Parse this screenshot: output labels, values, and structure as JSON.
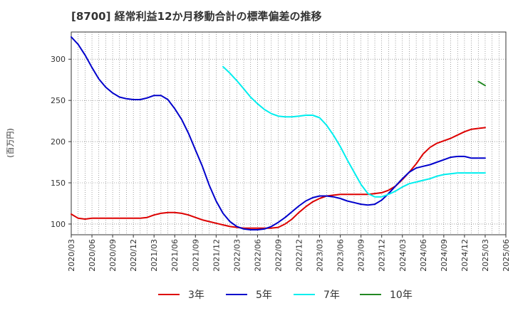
{
  "chart_data": {
    "type": "line",
    "title": "[8700]  経常利益12か月移動合計の標準偏差の推移",
    "ylabel": "(百万円)",
    "xlabel": "",
    "ylim": [
      87,
      333
    ],
    "yticks": [
      100,
      150,
      200,
      250,
      300
    ],
    "xticks": [
      "2020/03",
      "2020/06",
      "2020/09",
      "2020/12",
      "2021/03",
      "2021/06",
      "2021/09",
      "2021/12",
      "2022/03",
      "2022/06",
      "2022/09",
      "2022/12",
      "2023/03",
      "2023/06",
      "2023/09",
      "2023/12",
      "2024/03",
      "2024/06",
      "2024/09",
      "2024/12",
      "2025/03",
      "2025/06"
    ],
    "grid": true,
    "legend_position": "bottom",
    "series": [
      {
        "name": "3年",
        "color": "#dd0000",
        "x": [
          "2020/03",
          "2020/04",
          "2020/05",
          "2020/06",
          "2020/07",
          "2020/08",
          "2020/09",
          "2020/10",
          "2020/11",
          "2020/12",
          "2021/01",
          "2021/02",
          "2021/03",
          "2021/04",
          "2021/05",
          "2021/06",
          "2021/07",
          "2021/08",
          "2021/09",
          "2021/10",
          "2021/11",
          "2021/12",
          "2022/01",
          "2022/02",
          "2022/03",
          "2022/04",
          "2022/05",
          "2022/06",
          "2022/07",
          "2022/08",
          "2022/09",
          "2022/10",
          "2022/11",
          "2022/12",
          "2023/01",
          "2023/02",
          "2023/03",
          "2023/04",
          "2023/05",
          "2023/06",
          "2023/07",
          "2023/08",
          "2023/09",
          "2023/10",
          "2023/11",
          "2023/12",
          "2024/01",
          "2024/02",
          "2024/03",
          "2024/04",
          "2024/05",
          "2024/06",
          "2024/07",
          "2024/08",
          "2024/09",
          "2024/10",
          "2024/11",
          "2024/12",
          "2025/01",
          "2025/02",
          "2025/03"
        ],
        "values": [
          112,
          107,
          106,
          107,
          107,
          107,
          107,
          107,
          107,
          107,
          107,
          108,
          111,
          113,
          114,
          114,
          113,
          111,
          108,
          105,
          103,
          101,
          99,
          97,
          96,
          95,
          95,
          95,
          95,
          95,
          96,
          100,
          106,
          114,
          121,
          127,
          131,
          134,
          135,
          136,
          136,
          136,
          136,
          136,
          137,
          138,
          141,
          146,
          154,
          163,
          173,
          185,
          193,
          198,
          201,
          204,
          208,
          212,
          215,
          216,
          217
        ]
      },
      {
        "name": "5年",
        "color": "#0000cc",
        "x": [
          "2020/03",
          "2020/04",
          "2020/05",
          "2020/06",
          "2020/07",
          "2020/08",
          "2020/09",
          "2020/10",
          "2020/11",
          "2020/12",
          "2021/01",
          "2021/02",
          "2021/03",
          "2021/04",
          "2021/05",
          "2021/06",
          "2021/07",
          "2021/08",
          "2021/09",
          "2021/10",
          "2021/11",
          "2021/12",
          "2022/01",
          "2022/02",
          "2022/03",
          "2022/04",
          "2022/05",
          "2022/06",
          "2022/07",
          "2022/08",
          "2022/09",
          "2022/10",
          "2022/11",
          "2022/12",
          "2023/01",
          "2023/02",
          "2023/03",
          "2023/04",
          "2023/05",
          "2023/06",
          "2023/07",
          "2023/08",
          "2023/09",
          "2023/10",
          "2023/11",
          "2023/12",
          "2024/01",
          "2024/02",
          "2024/03",
          "2024/04",
          "2024/05",
          "2024/06",
          "2024/07",
          "2024/08",
          "2024/09",
          "2024/10",
          "2024/11",
          "2024/12",
          "2025/01",
          "2025/02",
          "2025/03"
        ],
        "values": [
          327,
          318,
          305,
          290,
          276,
          266,
          259,
          254,
          252,
          251,
          251,
          253,
          256,
          256,
          251,
          240,
          227,
          210,
          190,
          170,
          147,
          128,
          113,
          103,
          97,
          94,
          93,
          93,
          94,
          97,
          102,
          108,
          115,
          122,
          128,
          132,
          134,
          134,
          133,
          131,
          128,
          126,
          124,
          123,
          124,
          129,
          137,
          146,
          155,
          163,
          168,
          170,
          172,
          175,
          178,
          181,
          182,
          182,
          180,
          180,
          180
        ]
      },
      {
        "name": "7年",
        "color": "#00eeee",
        "x": [
          "2022/01",
          "2022/02",
          "2022/03",
          "2022/04",
          "2022/05",
          "2022/06",
          "2022/07",
          "2022/08",
          "2022/09",
          "2022/10",
          "2022/11",
          "2022/12",
          "2023/01",
          "2023/02",
          "2023/03",
          "2023/04",
          "2023/05",
          "2023/06",
          "2023/07",
          "2023/08",
          "2023/09",
          "2023/10",
          "2023/11",
          "2023/12",
          "2024/01",
          "2024/02",
          "2024/03",
          "2024/04",
          "2024/05",
          "2024/06",
          "2024/07",
          "2024/08",
          "2024/09",
          "2024/10",
          "2024/11",
          "2024/12",
          "2025/01",
          "2025/02",
          "2025/03"
        ],
        "values": [
          291,
          283,
          274,
          264,
          254,
          246,
          239,
          234,
          231,
          230,
          230,
          231,
          232,
          232,
          229,
          220,
          208,
          194,
          178,
          163,
          148,
          137,
          133,
          133,
          136,
          140,
          145,
          149,
          151,
          153,
          155,
          158,
          160,
          161,
          162,
          162,
          162,
          162,
          162
        ]
      },
      {
        "name": "10年",
        "color": "#228822",
        "x": [
          "2025/02",
          "2025/03"
        ],
        "values": [
          273,
          268
        ]
      }
    ]
  }
}
